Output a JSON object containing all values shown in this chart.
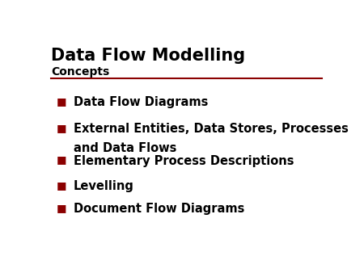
{
  "title": "Data Flow Modelling",
  "subtitle": "Concepts",
  "title_color": "#000000",
  "subtitle_color": "#000000",
  "title_fontsize": 15,
  "subtitle_fontsize": 10,
  "background_color": "#ffffff",
  "separator_color": "#8B0000",
  "bullet_color": "#8B0000",
  "bullet_char": "■",
  "text_color": "#000000",
  "bullet_fontsize": 10.5,
  "items": [
    "Data Flow Diagrams",
    "External Entities, Data Stores, Processes\nand Data Flows",
    "Elementary Process Descriptions",
    "Levelling",
    "Document Flow Diagrams"
  ]
}
